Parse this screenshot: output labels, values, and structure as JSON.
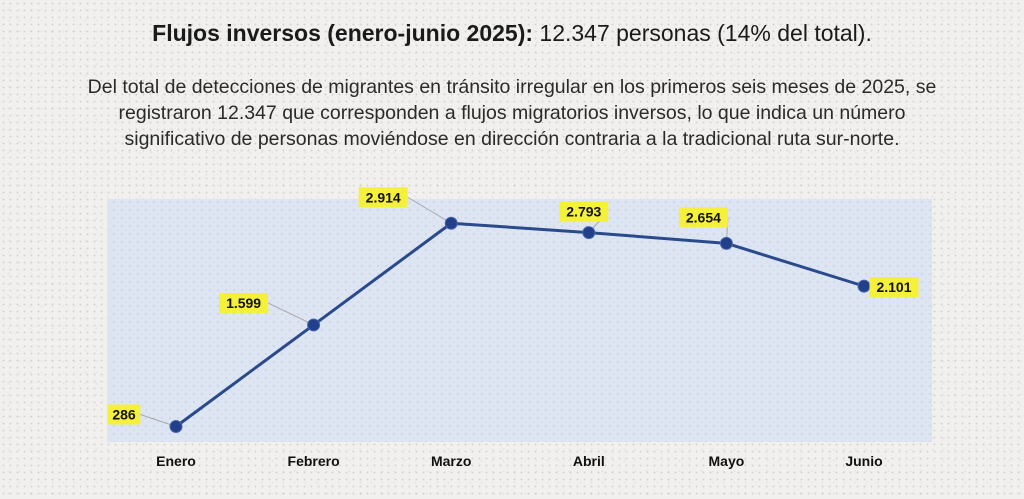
{
  "header": {
    "title_bold": "Flujos inversos (enero-junio 2025):",
    "title_rest": "12.347 personas (14% del total)."
  },
  "description": {
    "line1": "Del total de detecciones de migrantes en tránsito irregular en los primeros seis meses de 2025, se",
    "line2": "registraron 12.347 que corresponden a flujos migratorios inversos, lo que indica un número",
    "line3": "significativo de personas moviéndose en dirección contraria a la tradicional ruta sur-norte."
  },
  "colors": {
    "line": "#2b4a8c",
    "marker": "#22408a",
    "label_bg": "#f5f03a",
    "plot_bg": "#dde5f2"
  },
  "chart_data": {
    "type": "line",
    "categories": [
      "Enero",
      "Febrero",
      "Marzo",
      "Abril",
      "Mayo",
      "Junio"
    ],
    "values": [
      286,
      1599,
      2914,
      2793,
      2654,
      2101
    ],
    "data_labels": [
      "286",
      "1.599",
      "2.914",
      "2.793",
      "2.654",
      "2.101"
    ],
    "title": "",
    "xlabel": "",
    "ylabel": "",
    "ylim": [
      150,
      3150
    ],
    "grid": false,
    "legend": "none"
  }
}
